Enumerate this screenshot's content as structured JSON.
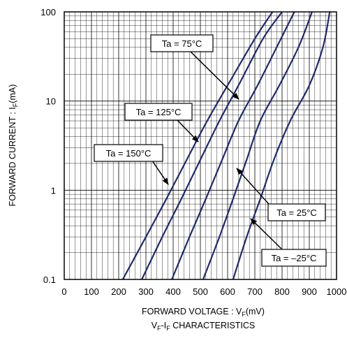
{
  "chart_data": {
    "type": "line",
    "title": "",
    "xlabel": "FORWARD VOLTAGE : VF(mV)",
    "xlabel_parts": {
      "main": "FORWARD VOLTAGE : V",
      "sub": "F",
      "tail": "(mV)"
    },
    "ylabel": "FORWARD CURRENT : IF(mA)",
    "ylabel_parts": {
      "main": "FORWARD CURRENT : I",
      "sub": "F",
      "tail": "(mA)"
    },
    "caption": "VF-IF CHARACTERISTICS",
    "caption_parts": {
      "a": "V",
      "a_sub": "F",
      "b": "-I",
      "b_sub": "F",
      "tail": " CHARACTERISTICS"
    },
    "xlim": [
      0,
      1000
    ],
    "ylim": [
      0.1,
      100
    ],
    "yscale": "log",
    "grid": true,
    "x_ticks": [
      0,
      100,
      200,
      300,
      400,
      500,
      600,
      700,
      800,
      900,
      1000
    ],
    "x_tick_labels": [
      "0",
      "100",
      "200",
      "300",
      "400",
      "500",
      "600",
      "700",
      "800",
      "900",
      "1000"
    ],
    "y_ticks": [
      0.1,
      1,
      10,
      100
    ],
    "y_tick_labels": [
      "0.1",
      "1",
      "10",
      "100"
    ],
    "series": [
      {
        "name": "Ta = 150°C",
        "x": [
          215,
          300,
          375,
          450,
          525,
          600,
          700,
          765
        ],
        "y": [
          0.1,
          0.3,
          0.8,
          2.2,
          6,
          15,
          50,
          100
        ]
      },
      {
        "name": "Ta = 125°C",
        "x": [
          285,
          360,
          430,
          500,
          570,
          640,
          730,
          800
        ],
        "y": [
          0.1,
          0.3,
          0.8,
          2.2,
          6,
          15,
          50,
          100
        ]
      },
      {
        "name": "Ta = 75°C",
        "x": [
          395,
          460,
          520,
          580,
          640,
          710,
          780,
          845
        ],
        "y": [
          0.1,
          0.3,
          0.8,
          2.2,
          6,
          15,
          40,
          100
        ]
      },
      {
        "name": "Ta = 25°C",
        "x": [
          510,
          570,
          620,
          670,
          720,
          790,
          860,
          910
        ],
        "y": [
          0.1,
          0.3,
          0.8,
          2.2,
          6,
          15,
          40,
          100
        ]
      },
      {
        "name": "Ta = –25°C",
        "x": [
          620,
          670,
          720,
          770,
          830,
          900,
          950,
          975
        ],
        "y": [
          0.1,
          0.3,
          0.8,
          2.2,
          6,
          15,
          40,
          100
        ]
      }
    ],
    "annotations": [
      {
        "label": "Ta = 75°C"
      },
      {
        "label": "Ta = 125°C"
      },
      {
        "label": "Ta = 150°C"
      },
      {
        "label": "Ta = 25°C"
      },
      {
        "label": "Ta = –25°C"
      }
    ],
    "colors": {
      "series": "#1f2a6b",
      "grid": "#000000",
      "frame": "#000000"
    }
  }
}
